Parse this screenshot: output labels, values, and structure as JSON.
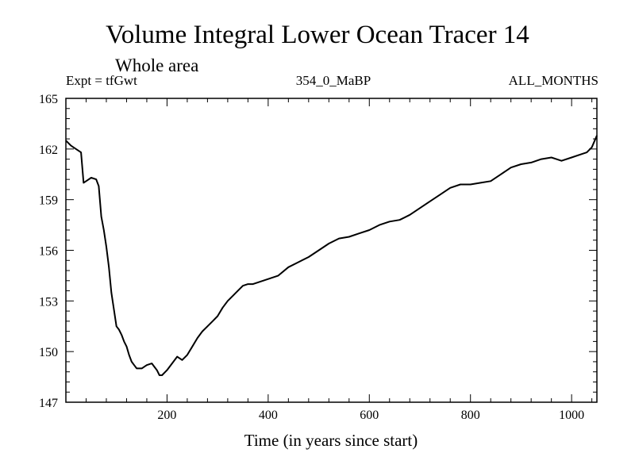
{
  "chart_data": {
    "type": "line",
    "title": "Volume Integral Lower Ocean Tracer 14",
    "subtitle": "Whole area",
    "left_header": "Expt = tfGwt",
    "center_header": "354_0_MaBP",
    "right_header": "ALL_MONTHS",
    "xlabel": "Time (in years since start)",
    "ylabel": "",
    "xlim": [
      0,
      1050
    ],
    "ylim": [
      147,
      165
    ],
    "xticks_major": [
      200,
      400,
      600,
      800,
      1000
    ],
    "xtick_labels": [
      "200",
      "400",
      "600",
      "800",
      "1000"
    ],
    "yticks_major": [
      147,
      150,
      153,
      156,
      159,
      162,
      165
    ],
    "ytick_labels": [
      "147",
      "150",
      "153",
      "156",
      "159",
      "162",
      "165"
    ],
    "line_color": "#000000",
    "series": [
      {
        "name": "Tracer 14",
        "x": [
          0,
          10,
          20,
          30,
          35,
          40,
          50,
          60,
          65,
          70,
          75,
          80,
          85,
          90,
          95,
          100,
          105,
          110,
          115,
          120,
          125,
          130,
          135,
          140,
          150,
          160,
          170,
          180,
          185,
          190,
          200,
          210,
          220,
          230,
          240,
          250,
          260,
          270,
          280,
          290,
          300,
          310,
          320,
          330,
          340,
          350,
          360,
          370,
          380,
          390,
          400,
          420,
          440,
          460,
          480,
          500,
          520,
          540,
          560,
          580,
          600,
          620,
          640,
          660,
          680,
          700,
          720,
          740,
          760,
          780,
          800,
          820,
          840,
          860,
          880,
          900,
          920,
          940,
          960,
          970,
          980,
          1000,
          1020,
          1030,
          1040,
          1050
        ],
        "y": [
          162.5,
          162.2,
          162.0,
          161.8,
          160.0,
          160.1,
          160.3,
          160.2,
          159.8,
          158.0,
          157.2,
          156.2,
          155.0,
          153.5,
          152.5,
          151.5,
          151.3,
          151.0,
          150.6,
          150.3,
          149.8,
          149.4,
          149.2,
          149.0,
          149.0,
          149.2,
          149.3,
          148.9,
          148.6,
          148.6,
          148.9,
          149.3,
          149.7,
          149.5,
          149.8,
          150.3,
          150.8,
          151.2,
          151.5,
          151.8,
          152.1,
          152.6,
          153.0,
          153.3,
          153.6,
          153.9,
          154.0,
          154.0,
          154.1,
          154.2,
          154.3,
          154.5,
          155.0,
          155.3,
          155.6,
          156.0,
          156.4,
          156.7,
          156.8,
          157.0,
          157.2,
          157.5,
          157.7,
          157.8,
          158.1,
          158.5,
          158.9,
          159.3,
          159.7,
          159.9,
          159.9,
          160.0,
          160.1,
          160.5,
          160.9,
          161.1,
          161.2,
          161.4,
          161.5,
          161.4,
          161.3,
          161.5,
          161.7,
          161.8,
          162.1,
          162.8
        ]
      }
    ]
  }
}
